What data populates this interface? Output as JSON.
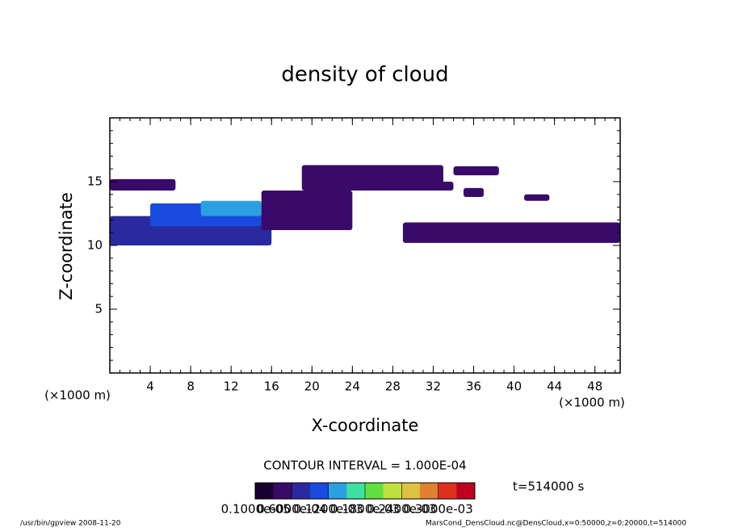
{
  "chart_data": {
    "type": "contour",
    "title": "density of cloud",
    "x_label": "X-coordinate",
    "y_label": "Z-coordinate",
    "x_unit": "(×1000 m)",
    "y_unit": "(×1000 m)",
    "xlim": [
      0,
      50.5
    ],
    "ylim": [
      0,
      20
    ],
    "xticks": [
      4,
      8,
      12,
      16,
      20,
      24,
      28,
      32,
      36,
      40,
      44,
      48
    ],
    "yticks": [
      5,
      10,
      15
    ],
    "contour_interval": "CONTOUR INTERVAL = 1.000E-04",
    "time_label": "t=514000 s",
    "colorbar": {
      "colors": [
        "#1a0030",
        "#3a0a6a",
        "#2a2aa0",
        "#1a4ae0",
        "#2aa0e0",
        "#40e0a0",
        "#60e040",
        "#c0e040",
        "#e0c040",
        "#e08030",
        "#e03020",
        "#c00020"
      ],
      "clim": [
        0,
        0.00036
      ],
      "ticks": [
        {
          "value": 1e-06,
          "label": "0.1000e-05"
        },
        {
          "value": 6e-05,
          "label": "0.6000e-04"
        },
        {
          "value": 0.00012,
          "label": "0.1200e-03"
        },
        {
          "value": 0.00018,
          "label": "0.1800e-03"
        },
        {
          "value": 0.00024,
          "label": "0.2400e-03"
        },
        {
          "value": 0.0003,
          "label": "0.3000e-03"
        }
      ]
    },
    "regions": [
      {
        "x0": 0,
        "x1": 16,
        "z0": 10,
        "z1": 12.3,
        "value": 6e-05
      },
      {
        "x0": 4,
        "x1": 15,
        "z0": 11.5,
        "z1": 13.3,
        "value": 0.0001
      },
      {
        "x0": 9,
        "x1": 15,
        "z0": 12.3,
        "z1": 13.5,
        "value": 0.00014
      },
      {
        "x0": 0,
        "x1": 6.5,
        "z0": 14.3,
        "z1": 15.2,
        "value": 3e-05
      },
      {
        "x0": 15,
        "x1": 24,
        "z0": 11.2,
        "z1": 14.3,
        "value": 4e-05
      },
      {
        "x0": 19,
        "x1": 33,
        "z0": 14.3,
        "z1": 16.3,
        "value": 3e-05
      },
      {
        "x0": 29,
        "x1": 50.5,
        "z0": 10.2,
        "z1": 11.8,
        "value": 3e-05
      },
      {
        "x0": 42,
        "x1": 50.5,
        "z0": 10.3,
        "z1": 11.7,
        "value": 5e-05
      },
      {
        "x0": 34,
        "x1": 38.5,
        "z0": 15.5,
        "z1": 16.2,
        "value": 3e-05
      },
      {
        "x0": 31,
        "x1": 34,
        "z0": 14.3,
        "z1": 15,
        "value": 3e-05
      },
      {
        "x0": 41,
        "x1": 43.5,
        "z0": 13.5,
        "z1": 14,
        "value": 3e-05
      },
      {
        "x0": 35,
        "x1": 37,
        "z0": 13.8,
        "z1": 14.5,
        "value": 3e-05
      }
    ],
    "footer_left": "/usr/bin/gpview  2008-11-20",
    "footer_right": "MarsCond_DensCloud.nc@DensCloud,x=0:50000,z=0:20000,t=514000"
  }
}
